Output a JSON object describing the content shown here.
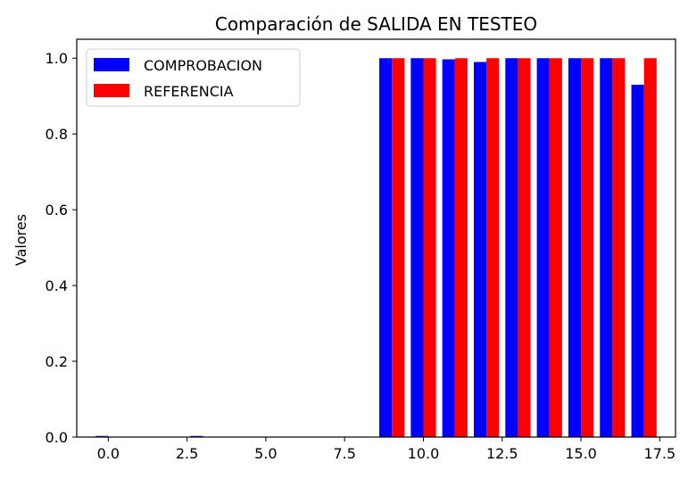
{
  "chart_data": {
    "type": "bar",
    "title": "Comparación de SALIDA EN TESTEO",
    "xlabel": "",
    "ylabel": "Valores",
    "x": [
      0,
      1,
      2,
      3,
      4,
      5,
      6,
      7,
      8,
      9,
      10,
      11,
      12,
      13,
      14,
      15,
      16,
      17
    ],
    "xlim": [
      -1.0,
      18.0
    ],
    "ylim": [
      0.0,
      1.05
    ],
    "xticks": [
      0.0,
      2.5,
      5.0,
      7.5,
      10.0,
      12.5,
      15.0,
      17.5
    ],
    "xtick_labels": [
      "0.0",
      "2.5",
      "5.0",
      "7.5",
      "10.0",
      "12.5",
      "15.0",
      "17.5"
    ],
    "yticks": [
      0.0,
      0.2,
      0.4,
      0.6,
      0.8,
      1.0
    ],
    "ytick_labels": [
      "0.0",
      "0.2",
      "0.4",
      "0.6",
      "0.8",
      "1.0"
    ],
    "grid": false,
    "legend_position": "top-left",
    "series": [
      {
        "name": "COMPROBACION",
        "color": "#0000ff",
        "values": [
          0.003,
          0.0,
          0.0,
          0.003,
          0.0,
          0.0,
          0.0,
          0.0,
          0.0,
          1.0,
          1.0,
          0.997,
          0.99,
          1.0,
          1.0,
          1.0,
          1.0,
          0.93
        ]
      },
      {
        "name": "REFERENCIA",
        "color": "#ff0000",
        "values": [
          0.0,
          0.0,
          0.0,
          0.0,
          0.0,
          0.0,
          0.0,
          0.0,
          0.0,
          1.0,
          1.0,
          1.0,
          1.0,
          1.0,
          1.0,
          1.0,
          1.0,
          1.0
        ]
      }
    ]
  }
}
